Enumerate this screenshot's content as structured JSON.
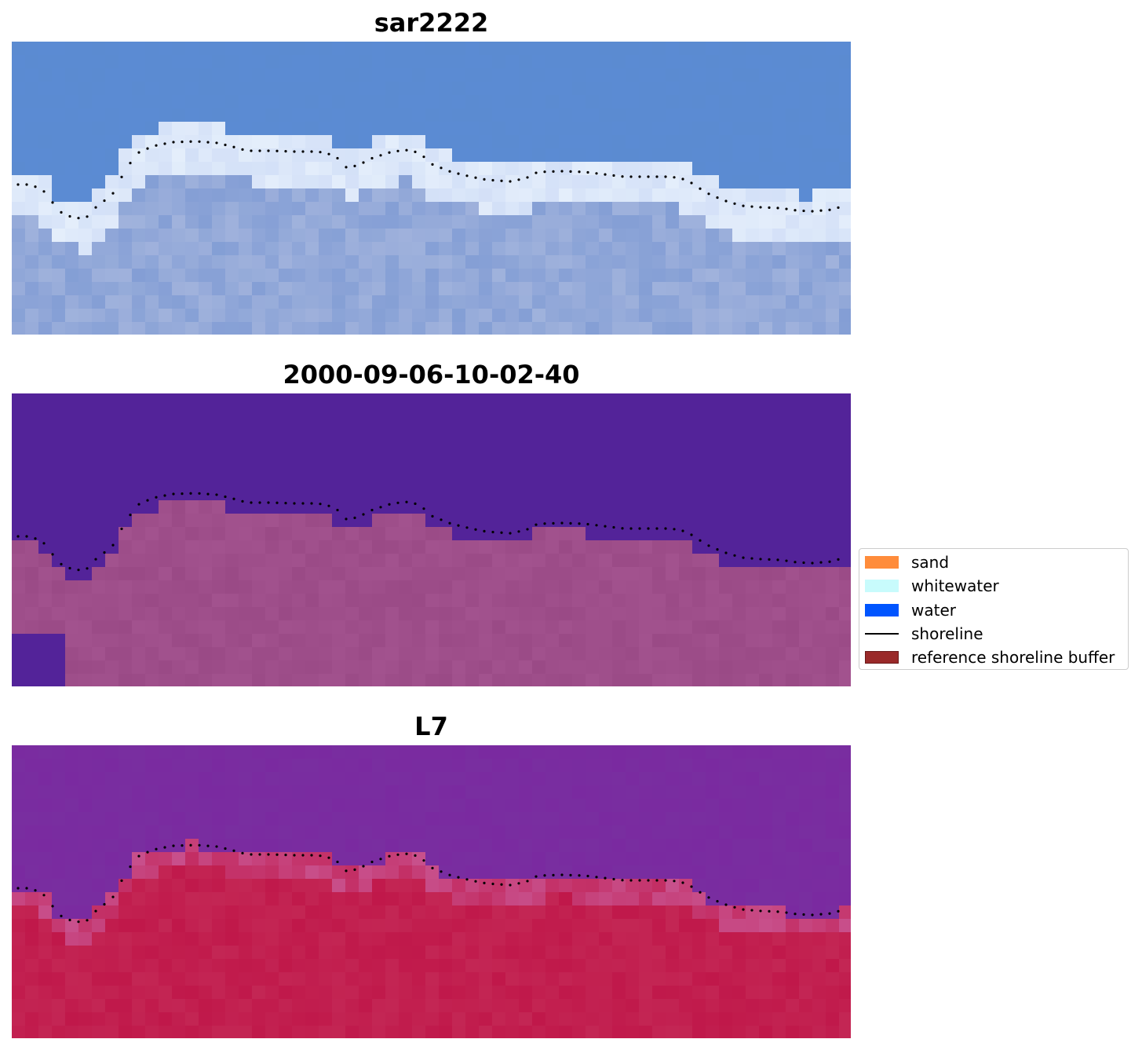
{
  "panels": [
    {
      "title": "sar2222",
      "kind": "rgb"
    },
    {
      "title": "2000-09-06-10-02-40",
      "kind": "classified"
    },
    {
      "title": "L7",
      "kind": "index"
    }
  ],
  "legend": {
    "items": [
      {
        "label": "sand",
        "color": "#ff8c3b",
        "style": "patch"
      },
      {
        "label": "whitewater",
        "color": "#c8fbfc",
        "style": "patch"
      },
      {
        "label": "water",
        "color": "#0055ff",
        "style": "patch"
      },
      {
        "label": "shoreline",
        "color": "#000000",
        "style": "line"
      },
      {
        "label": "reference shoreline buffer",
        "color": "#9a2a2a",
        "style": "patch"
      }
    ]
  },
  "colors": {
    "rgb_water": "#5b8bd1",
    "rgb_surf": "#e4eefb",
    "class_water": "#532399",
    "class_land": "#9a4a86",
    "index_water": "#7a2aa0",
    "index_land": "#c0184a",
    "shoreline_points": "#000000"
  }
}
